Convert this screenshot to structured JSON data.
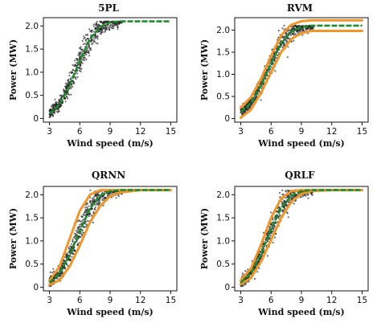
{
  "colors": {
    "scatter": "#222222",
    "fit": "#1f8a2e",
    "bands": "#f0962a",
    "axis": "#111111"
  },
  "chart_data": [
    {
      "type": "scatter",
      "title": "5PL",
      "xlabel": "Wind speed (m/s)",
      "ylabel": "Power (MW)",
      "xlim": [
        3,
        15
      ],
      "ylim": [
        0,
        2.1
      ],
      "xticks": [
        "3",
        "6",
        "9",
        "12",
        "15"
      ],
      "yticks": [
        "0",
        "0.5",
        "1.0",
        "1.5",
        "2.0"
      ],
      "rated_power": 2.1,
      "points_note": "dense black scatter of measured power around the fitted curve",
      "series": [
        {
          "role": "fit",
          "x": [
            3,
            4,
            5,
            6,
            7,
            8,
            9,
            10,
            12,
            15
          ],
          "y": [
            0.1,
            0.3,
            0.72,
            1.25,
            1.72,
            1.98,
            2.08,
            2.1,
            2.1,
            2.1
          ]
        }
      ]
    },
    {
      "type": "scatter",
      "title": "RVM",
      "xlabel": "Wind speed (m/s)",
      "ylabel": "Power (MW)",
      "xlim": [
        3,
        15
      ],
      "ylim": [
        0,
        2.2
      ],
      "xticks": [
        "3",
        "6",
        "9",
        "12",
        "15"
      ],
      "yticks": [
        "0",
        "0.5",
        "1.0",
        "1.5",
        "2.0"
      ],
      "rated_power": 2.1,
      "series": [
        {
          "role": "fit",
          "x": [
            3,
            4,
            5,
            6,
            7,
            8,
            9,
            10,
            12,
            15
          ],
          "y": [
            0.15,
            0.35,
            0.75,
            1.25,
            1.7,
            1.97,
            2.07,
            2.1,
            2.1,
            2.1
          ]
        },
        {
          "role": "upper",
          "x": [
            3,
            4,
            5,
            6,
            7,
            8,
            9,
            10,
            12,
            15
          ],
          "y": [
            0.25,
            0.48,
            0.9,
            1.42,
            1.88,
            2.12,
            2.2,
            2.22,
            2.22,
            2.22
          ]
        },
        {
          "role": "lower",
          "x": [
            3,
            4,
            5,
            6,
            7,
            8,
            9,
            10,
            12,
            15
          ],
          "y": [
            0.02,
            0.2,
            0.58,
            1.05,
            1.5,
            1.8,
            1.93,
            1.98,
            1.98,
            1.98
          ]
        }
      ]
    },
    {
      "type": "scatter",
      "title": "QRNN",
      "xlabel": "Wind speed (m/s)",
      "ylabel": "Power (MW)",
      "xlim": [
        3,
        15
      ],
      "ylim": [
        0,
        2.1
      ],
      "xticks": [
        "3",
        "6",
        "9",
        "12",
        "15"
      ],
      "yticks": [
        "0",
        "0.5",
        "1.0",
        "1.5",
        "2.0"
      ],
      "rated_power": 2.1,
      "series": [
        {
          "role": "fit",
          "x": [
            3,
            4,
            5,
            6,
            7,
            8,
            9,
            10,
            12,
            15
          ],
          "y": [
            0.1,
            0.3,
            0.7,
            1.22,
            1.7,
            1.98,
            2.08,
            2.1,
            2.1,
            2.1
          ]
        },
        {
          "role": "upper",
          "x": [
            3,
            4,
            5,
            6,
            7,
            8,
            9,
            10,
            12,
            15
          ],
          "y": [
            0.14,
            0.45,
            1.05,
            1.65,
            2.0,
            2.1,
            2.1,
            2.1,
            2.1,
            2.1
          ]
        },
        {
          "role": "lower",
          "x": [
            3,
            4,
            5,
            6,
            7,
            8,
            9,
            10,
            12,
            15
          ],
          "y": [
            0.05,
            0.15,
            0.45,
            0.9,
            1.4,
            1.75,
            1.97,
            2.05,
            2.1,
            2.1
          ]
        }
      ]
    },
    {
      "type": "scatter",
      "title": "QRLF",
      "xlabel": "Wind speed (m/s)",
      "ylabel": "Power (MW)",
      "xlim": [
        3,
        15
      ],
      "ylim": [
        0,
        2.1
      ],
      "xticks": [
        "3",
        "6",
        "9",
        "12",
        "15"
      ],
      "yticks": [
        "0",
        "0.5",
        "1.0",
        "1.5",
        "2.0"
      ],
      "rated_power": 2.1,
      "series": [
        {
          "role": "fit",
          "x": [
            3,
            4,
            5,
            6,
            7,
            8,
            9,
            10,
            12,
            15
          ],
          "y": [
            0.1,
            0.3,
            0.72,
            1.25,
            1.72,
            1.98,
            2.08,
            2.1,
            2.1,
            2.1
          ]
        },
        {
          "role": "upper",
          "x": [
            3,
            4,
            5,
            6,
            7,
            8,
            9,
            10,
            12,
            15
          ],
          "y": [
            0.15,
            0.4,
            0.92,
            1.5,
            1.92,
            2.08,
            2.1,
            2.1,
            2.1,
            2.1
          ]
        },
        {
          "role": "lower",
          "x": [
            3,
            4,
            5,
            6,
            7,
            8,
            9,
            10,
            12,
            15
          ],
          "y": [
            0.06,
            0.2,
            0.55,
            1.02,
            1.5,
            1.85,
            2.02,
            2.08,
            2.1,
            2.1
          ]
        }
      ]
    }
  ]
}
